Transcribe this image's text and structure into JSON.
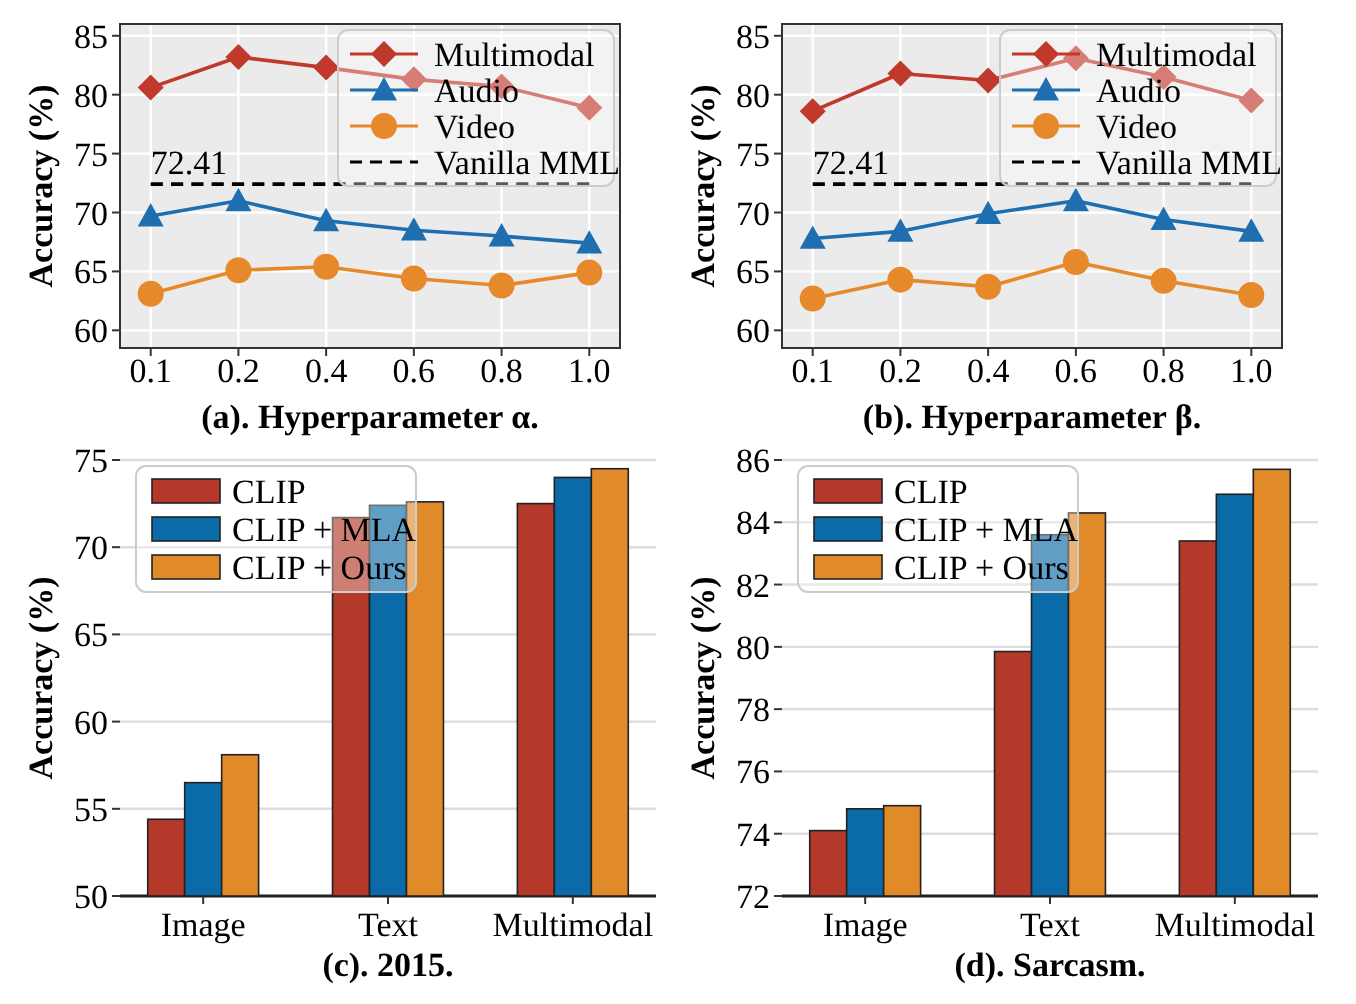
{
  "chart_data": [
    {
      "type": "line",
      "title": "(a). Hyperparameter α.",
      "ylabel": "Accuracy (%)",
      "categories": [
        "0.1",
        "0.2",
        "0.4",
        "0.6",
        "0.8",
        "1.0"
      ],
      "ylim": [
        58.5,
        86
      ],
      "yticks": [
        60,
        65,
        70,
        75,
        80,
        85
      ],
      "grid": true,
      "legend": "top right",
      "annotations": [
        {
          "text": "72.41",
          "x": "0.1",
          "y": 72.41
        }
      ],
      "series": [
        {
          "name": "Multimodal",
          "color": "#c0392b",
          "marker": "diamond",
          "values": [
            80.6,
            83.2,
            82.3,
            81.3,
            80.7,
            78.9
          ]
        },
        {
          "name": "Audio",
          "color": "#1f6fb0",
          "marker": "triangle",
          "values": [
            69.7,
            71.0,
            69.3,
            68.5,
            68.0,
            67.4
          ]
        },
        {
          "name": "Video",
          "color": "#e6892a",
          "marker": "circle",
          "values": [
            63.1,
            65.1,
            65.4,
            64.4,
            63.8,
            64.9
          ]
        },
        {
          "name": "Vanilla MML",
          "color": "#000000",
          "marker": "none",
          "line_style": "dashed",
          "values": [
            72.41,
            72.41,
            72.41,
            72.41,
            72.41,
            72.41
          ]
        }
      ]
    },
    {
      "type": "line",
      "title": "(b). Hyperparameter β.",
      "ylabel": "Accuracy (%)",
      "categories": [
        "0.1",
        "0.2",
        "0.4",
        "0.6",
        "0.8",
        "1.0"
      ],
      "ylim": [
        58.5,
        86
      ],
      "yticks": [
        60,
        65,
        70,
        75,
        80,
        85
      ],
      "grid": true,
      "legend": "top right",
      "annotations": [
        {
          "text": "72.41",
          "x": "0.1",
          "y": 72.41
        }
      ],
      "series": [
        {
          "name": "Multimodal",
          "color": "#c0392b",
          "marker": "diamond",
          "values": [
            78.6,
            81.8,
            81.2,
            83.1,
            81.5,
            79.5
          ]
        },
        {
          "name": "Audio",
          "color": "#1f6fb0",
          "marker": "triangle",
          "values": [
            67.8,
            68.4,
            69.9,
            71.0,
            69.4,
            68.4
          ]
        },
        {
          "name": "Video",
          "color": "#e6892a",
          "marker": "circle",
          "values": [
            62.7,
            64.3,
            63.7,
            65.8,
            64.2,
            63.0
          ]
        },
        {
          "name": "Vanilla MML",
          "color": "#000000",
          "marker": "none",
          "line_style": "dashed",
          "values": [
            72.41,
            72.41,
            72.41,
            72.41,
            72.41,
            72.41
          ]
        }
      ]
    },
    {
      "type": "bar",
      "title": "(c). 2015.",
      "ylabel": "Accuracy (%)",
      "categories": [
        "Image",
        "Text",
        "Multimodal"
      ],
      "ylim": [
        50,
        75
      ],
      "yticks": [
        50,
        55,
        60,
        65,
        70,
        75
      ],
      "grid": "y",
      "legend": "top left",
      "series": [
        {
          "name": "CLIP",
          "color": "#b5392a",
          "values": [
            54.4,
            71.7,
            72.5
          ]
        },
        {
          "name": "CLIP + MLA",
          "color": "#0b6aa8",
          "values": [
            56.5,
            72.4,
            74.0
          ]
        },
        {
          "name": "CLIP + Ours",
          "color": "#e08a2a",
          "values": [
            58.1,
            72.6,
            74.5
          ]
        }
      ]
    },
    {
      "type": "bar",
      "title": "(d). Sarcasm.",
      "ylabel": "Accuracy (%)",
      "categories": [
        "Image",
        "Text",
        "Multimodal"
      ],
      "ylim": [
        72,
        86
      ],
      "yticks": [
        72,
        74,
        76,
        78,
        80,
        82,
        84,
        86
      ],
      "grid": "y",
      "legend": "top left",
      "series": [
        {
          "name": "CLIP",
          "color": "#b5392a",
          "values": [
            74.1,
            79.85,
            83.4
          ]
        },
        {
          "name": "CLIP + MLA",
          "color": "#0b6aa8",
          "values": [
            74.8,
            83.6,
            84.9
          ]
        },
        {
          "name": "CLIP + Ours",
          "color": "#e08a2a",
          "values": [
            74.9,
            84.3,
            85.7
          ]
        }
      ]
    }
  ]
}
